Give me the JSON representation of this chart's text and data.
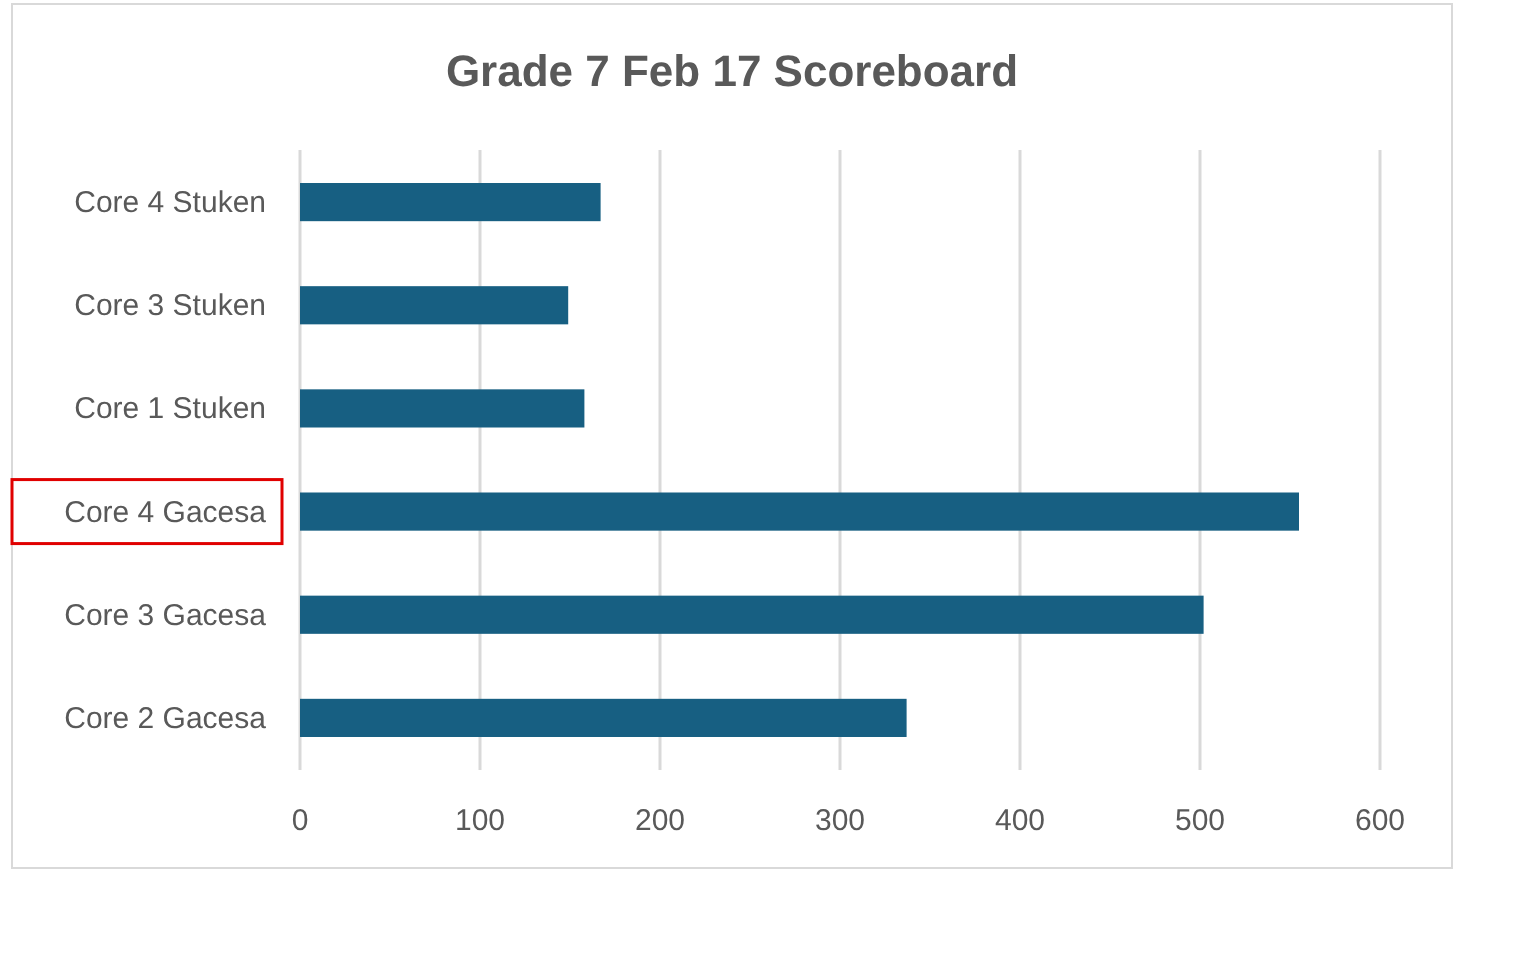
{
  "chart_data": {
    "type": "bar",
    "orientation": "horizontal",
    "title": "Grade 7 Feb 17 Scoreboard",
    "categories": [
      "Core 4 Stuken",
      "Core 3 Stuken",
      "Core 1 Stuken",
      "Core 4 Gacesa",
      "Core 3 Gacesa",
      "Core 2 Gacesa"
    ],
    "values": [
      167,
      149,
      158,
      555,
      502,
      337
    ],
    "color": "#175f82",
    "xlim": [
      0,
      600
    ],
    "xticks": [
      0,
      100,
      200,
      300,
      400,
      500,
      600
    ],
    "grid": "x"
  }
}
